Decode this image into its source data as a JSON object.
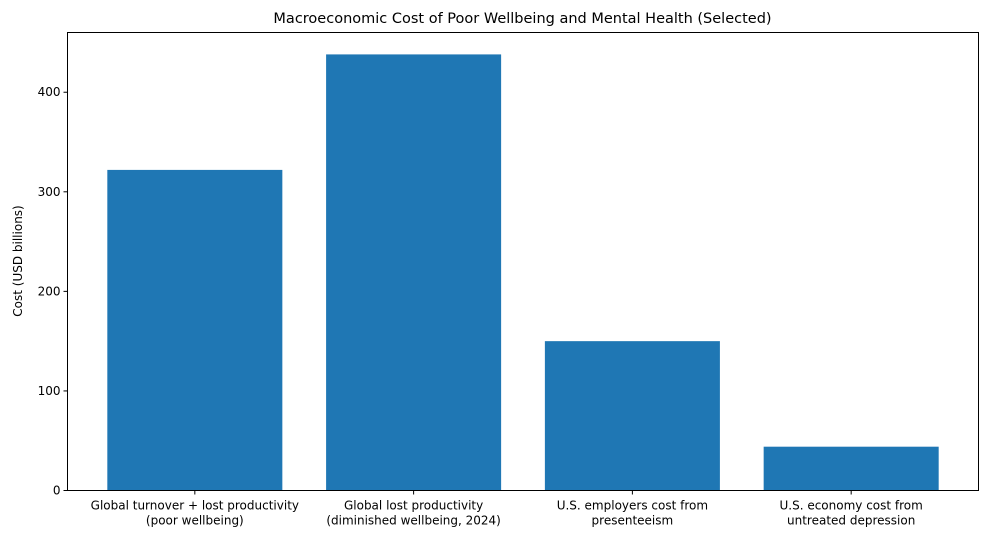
{
  "chart_data": {
    "type": "bar",
    "title": "Macroeconomic Cost of Poor Wellbeing and Mental Health (Selected)",
    "xlabel": "",
    "ylabel": "Cost (USD billions)",
    "categories": [
      [
        "Global turnover + lost productivity",
        "(poor wellbeing)"
      ],
      [
        "Global lost productivity",
        "(diminished wellbeing, 2024)"
      ],
      [
        "U.S. employers cost from",
        "presenteeism"
      ],
      [
        "U.S. economy cost from",
        "untreated depression"
      ]
    ],
    "values": [
      322,
      438,
      150,
      44
    ],
    "ylim": [
      0,
      460
    ],
    "yticks": [
      0,
      100,
      200,
      300,
      400
    ],
    "grid": false,
    "bar_color": "#1f77b4"
  }
}
